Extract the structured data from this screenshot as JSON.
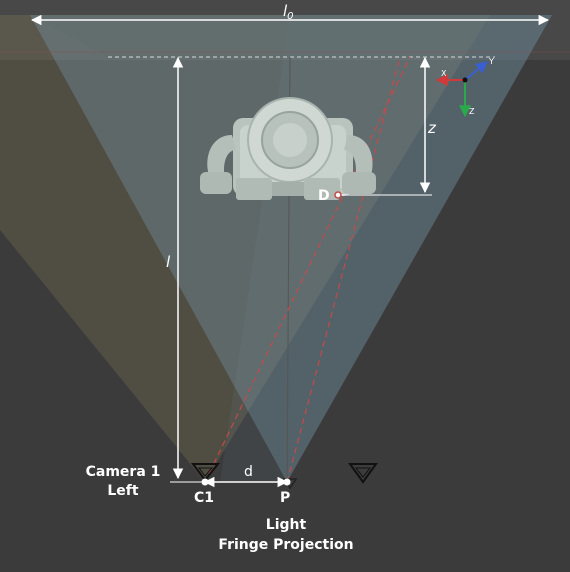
{
  "labels": {
    "l0": "l0",
    "l0_main": "l",
    "l0_sub": "0",
    "z": "z",
    "l": "l",
    "d": "d",
    "D": "D",
    "C1": "C1",
    "P": "P",
    "camera_line1": "Camera 1",
    "camera_line2": "Left",
    "light_line1": "Light",
    "light_line2": "Fringe Projection",
    "axis_x": "X",
    "axis_y": "Y",
    "axis_z": "Z"
  },
  "colors": {
    "background": "#3a3a3a",
    "frame": "#ffffff",
    "projection_cone": "#7fa3b6",
    "camera_cone": "#8a7f5a",
    "dashed_ray": "#c44a4a",
    "axis_x": "#d23a3a",
    "axis_y": "#3a5fd2",
    "axis_z": "#2aa84a",
    "model": "#c7d2cd"
  },
  "icons": [
    "camera-icon",
    "projector-icon",
    "camera-right-icon"
  ]
}
